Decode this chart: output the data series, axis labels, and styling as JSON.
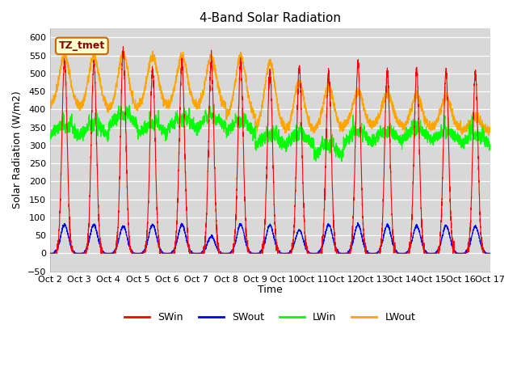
{
  "title": "4-Band Solar Radiation",
  "ylabel": "Solar Radiation (W/m2)",
  "xlabel": "Time",
  "ylim": [
    -50,
    625
  ],
  "yticks": [
    -50,
    0,
    50,
    100,
    150,
    200,
    250,
    300,
    350,
    400,
    450,
    500,
    550,
    600
  ],
  "xtick_labels": [
    "Oct 2",
    "Oct 3",
    "Oct 4",
    "Oct 5",
    "Oct 6",
    "Oct 7",
    "Oct 8",
    "Oct 9",
    "Oct 10",
    "Oct 11",
    "Oct 12",
    "Oct 13",
    "Oct 14",
    "Oct 15",
    "Oct 16",
    "Oct 17"
  ],
  "colors": {
    "SWin": "#ff0000",
    "SWout": "#0000ff",
    "LWin": "#00ff00",
    "LWout": "#ffa500"
  },
  "annotation_text": "TZ_tmet",
  "annotation_bg": "#ffffcc",
  "annotation_border": "#cc6600",
  "facecolor": "#d8d8d8",
  "SWin_peaks": [
    540,
    530,
    563,
    510,
    530,
    535,
    530,
    505,
    515,
    500,
    528,
    505,
    510,
    505,
    500
  ],
  "SWout_peaks": [
    80,
    80,
    75,
    80,
    80,
    47,
    80,
    78,
    65,
    80,
    80,
    78,
    77,
    77,
    75
  ],
  "LWin_base": [
    325,
    325,
    355,
    330,
    345,
    350,
    335,
    300,
    300,
    270,
    305,
    310,
    315,
    310,
    300
  ],
  "LWout_peaks": [
    550,
    548,
    555,
    548,
    550,
    545,
    548,
    530,
    475,
    460,
    450,
    445,
    440,
    435,
    380
  ],
  "LWout_base": [
    410,
    405,
    400,
    410,
    410,
    405,
    380,
    350,
    340,
    345,
    355,
    355,
    350,
    348,
    340
  ]
}
